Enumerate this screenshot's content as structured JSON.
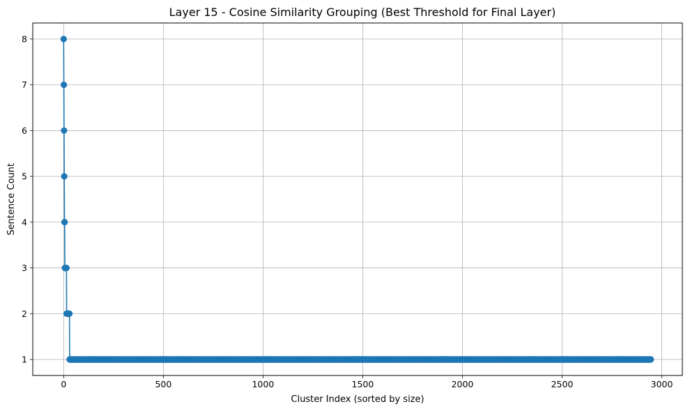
{
  "chart_data": {
    "type": "line",
    "title": "Layer 15 - Cosine Similarity Grouping (Best Threshold for Final Layer)",
    "xlabel": "Cluster Index (sorted by size)",
    "ylabel": "Sentence Count",
    "xlim": [
      -155,
      3103
    ],
    "ylim": [
      0.65,
      8.35
    ],
    "xticks": [
      0,
      500,
      1000,
      1500,
      2000,
      2500,
      3000
    ],
    "yticks": [
      1,
      2,
      3,
      4,
      5,
      6,
      7,
      8
    ],
    "grid": true,
    "marker": "circle",
    "series_color": "#1f77b4",
    "series": [
      {
        "segments": [
          {
            "x_start": 0,
            "x_end": 0,
            "value": 8
          },
          {
            "x_start": 1,
            "x_end": 1,
            "value": 7
          },
          {
            "x_start": 2,
            "x_end": 2,
            "value": 6
          },
          {
            "x_start": 3,
            "x_end": 3,
            "value": 5
          },
          {
            "x_start": 4,
            "x_end": 5,
            "value": 4
          },
          {
            "x_start": 6,
            "x_end": 14,
            "value": 3
          },
          {
            "x_start": 15,
            "x_end": 29,
            "value": 2
          },
          {
            "x_start": 30,
            "x_end": 2945,
            "value": 1
          }
        ]
      }
    ]
  }
}
